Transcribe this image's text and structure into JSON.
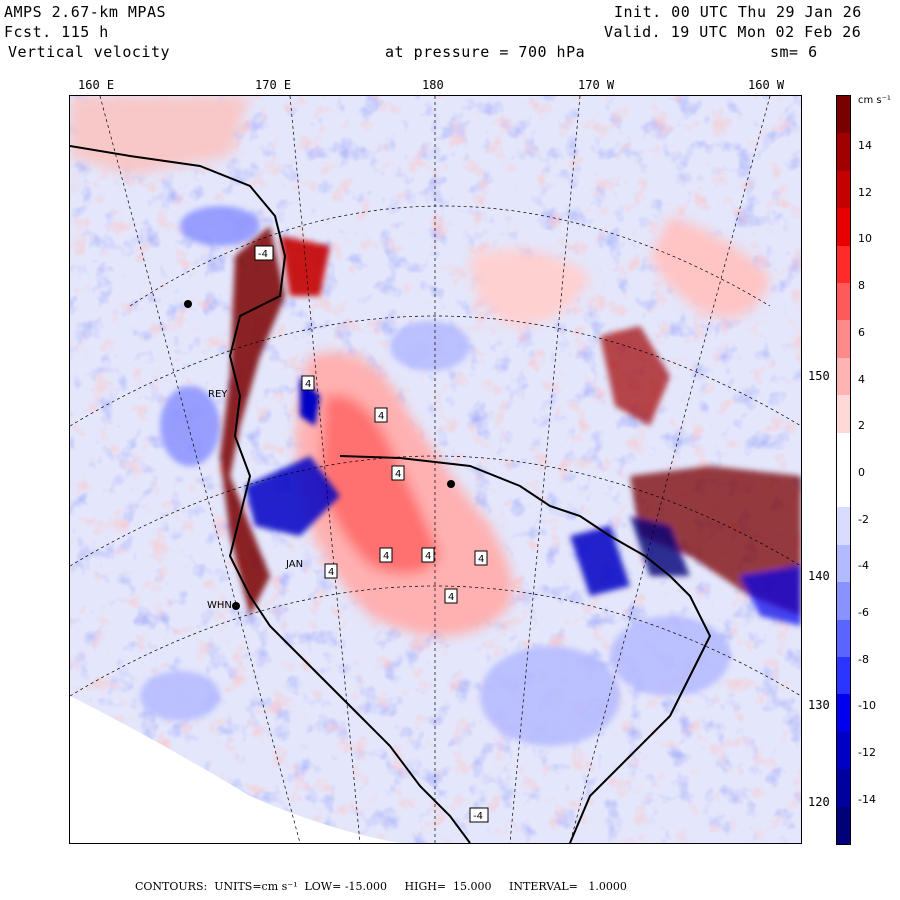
{
  "header": {
    "model": "AMPS 2.67-km MPAS",
    "forecast": "Fcst. 115 h",
    "field": "Vertical velocity",
    "level": "at pressure = 700 hPa",
    "init": "Init. 00 UTC Thu 29 Jan 26",
    "valid": "Valid. 19 UTC Mon 02 Feb 26",
    "smoothing": "sm= 6"
  },
  "longitude_labels": [
    "160 E",
    "170 E",
    "180",
    "170 W",
    "160 W"
  ],
  "latitude_labels": [
    "150 W",
    "140 W",
    "130 W",
    "120 W"
  ],
  "station_labels": [
    "WHN",
    "REY",
    "JAN"
  ],
  "colorbar": {
    "units": "cm s⁻¹",
    "tick_labels": [
      "14",
      "12",
      "10",
      "8",
      "6",
      "4",
      "2",
      "0",
      "-2",
      "-4",
      "-6",
      "-8",
      "-10",
      "-12",
      "-14"
    ],
    "colors": [
      "#7a0000",
      "#a00000",
      "#c40000",
      "#e60000",
      "#ff2a2a",
      "#ff5a5a",
      "#ff8a8a",
      "#ffb4b4",
      "#ffd8d8",
      "#ffffff",
      "#ffffff",
      "#d8dcff",
      "#b4baff",
      "#8a92ff",
      "#5a64ff",
      "#2a36ff",
      "#0000ee",
      "#0000c4",
      "#00009e",
      "#000078"
    ]
  },
  "footer": {
    "contours": "CONTOURS:  UNITS=cm s⁻¹  LOW= -15.000     HIGH=  15.000     INTERVAL=   1.0000"
  }
}
